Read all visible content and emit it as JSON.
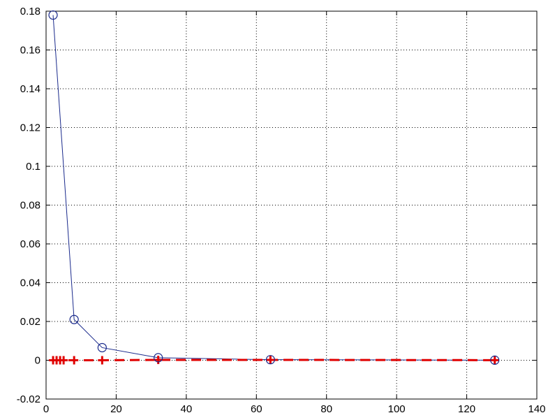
{
  "chart_data": {
    "type": "line",
    "title": "",
    "xlabel": "",
    "ylabel": "",
    "xlim": [
      0,
      140
    ],
    "ylim": [
      -0.02,
      0.18
    ],
    "xticks": [
      0,
      20,
      40,
      60,
      80,
      100,
      120,
      140
    ],
    "yticks": [
      -0.02,
      0,
      0.02,
      0.04,
      0.06,
      0.08,
      0.1,
      0.12,
      0.14,
      0.16,
      0.18
    ],
    "xtick_labels": [
      "0",
      "20",
      "40",
      "60",
      "80",
      "100",
      "120",
      "140"
    ],
    "ytick_labels": [
      "-0.02",
      "0",
      "0.02",
      "0.04",
      "0.06",
      "0.08",
      "0.1",
      "0.12",
      "0.14",
      "0.16",
      "0.18"
    ],
    "grid": true,
    "series": [
      {
        "style": "solid line, open circle markers",
        "color": "#1a2a8c",
        "x": [
          2,
          8,
          16,
          32,
          64,
          128
        ],
        "y": [
          0.178,
          0.021,
          0.0065,
          0.0013,
          0.0003,
          5e-05
        ]
      },
      {
        "style": "dashed line, plus markers",
        "color": "#e00000",
        "x": [
          2,
          3,
          4,
          5,
          8,
          16,
          32,
          64,
          128
        ],
        "y": [
          0,
          0,
          0,
          0,
          0,
          0,
          0.0002,
          0.0002,
          5e-05
        ]
      }
    ]
  }
}
